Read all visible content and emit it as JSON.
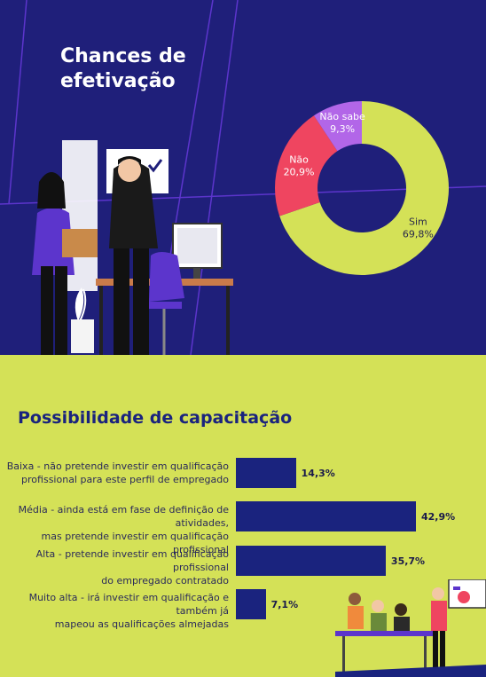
{
  "donut_title": [
    "Chances de",
    "efetivação"
  ],
  "bars_title": "Possibilidade de capacitação",
  "colors": {
    "navy": "#1f1f7a",
    "lime": "#d4e157",
    "bar": "#1a237e",
    "purple": "#5c35cc"
  },
  "chart_data": [
    {
      "type": "pie",
      "title": "Chances de efetivação",
      "categories": [
        "Sim",
        "Não",
        "Não sabe"
      ],
      "values": [
        69.8,
        20.9,
        9.3
      ],
      "value_labels": [
        "69,8%",
        "20,9%",
        "9,3%"
      ],
      "colors": [
        "#d4e157",
        "#ef4560",
        "#b266e8"
      ],
      "donut": true
    },
    {
      "type": "bar",
      "orientation": "horizontal",
      "title": "Possibilidade de capacitação",
      "categories": [
        [
          "Baixa - não pretende investir em qualificação",
          "profissional para este perfil de empregado"
        ],
        [
          "Média - ainda está em fase de definição de atividades,",
          "mas pretende investir em qualificação profissional"
        ],
        [
          "Alta - pretende investir em qualificação profissional",
          "do empregado contratado"
        ],
        [
          "Muito alta - irá investir em qualificação e também já",
          "mapeou as qualificações almejadas"
        ]
      ],
      "values": [
        14.3,
        42.9,
        35.7,
        7.1
      ],
      "value_labels": [
        "14,3%",
        "42,9%",
        "35,7%",
        "7,1%"
      ],
      "xlim": [
        0,
        42.9
      ]
    }
  ]
}
